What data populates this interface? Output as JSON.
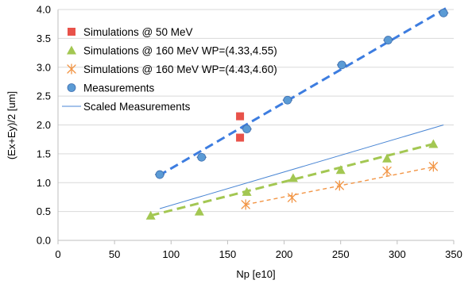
{
  "chart_data": {
    "type": "scatter",
    "xlabel": "Np [e10]",
    "ylabel": "(Ex+Ey)/2 [um]",
    "xlim": [
      0,
      350
    ],
    "ylim": [
      0,
      4
    ],
    "x_ticks": [
      "0",
      "50",
      "100",
      "150",
      "200",
      "250",
      "300",
      "350"
    ],
    "y_ticks": [
      "0.0",
      "0.5",
      "1.0",
      "1.5",
      "2.0",
      "2.5",
      "3.0",
      "3.5",
      "4.0"
    ],
    "grid": "horizontal",
    "legend_position": "top-left",
    "series": [
      {
        "name": "Simulations @ 50 MeV",
        "marker": "square",
        "color": "#e8524a",
        "points": [
          [
            161,
            2.15
          ],
          [
            161,
            1.78
          ]
        ]
      },
      {
        "name": "Simulations @ 160 MeV WP=(4.33,4.55)",
        "marker": "triangle",
        "color": "#a3c752",
        "points": [
          [
            82,
            0.43
          ],
          [
            125,
            0.5
          ],
          [
            167,
            0.84
          ],
          [
            208,
            1.08
          ],
          [
            250,
            1.22
          ],
          [
            291,
            1.42
          ],
          [
            332,
            1.67
          ]
        ],
        "trendline": {
          "from": [
            82,
            0.43
          ],
          "to": [
            332,
            1.67
          ],
          "style": "dashed",
          "color": "#a3c752"
        }
      },
      {
        "name": "Simulations @ 160 MeV WP=(4.43,4.60)",
        "marker": "asterisk",
        "color": "#f29545",
        "points": [
          [
            166,
            0.62
          ],
          [
            207,
            0.74
          ],
          [
            249,
            0.95
          ],
          [
            291,
            1.2
          ],
          [
            332,
            1.28
          ]
        ],
        "trendline": {
          "from": [
            166,
            0.62
          ],
          "to": [
            334,
            1.28
          ],
          "style": "dashed",
          "color": "#f29545"
        }
      },
      {
        "name": "Measurements",
        "marker": "circle",
        "color": "#5b9bd5",
        "points": [
          [
            90,
            1.14
          ],
          [
            127,
            1.44
          ],
          [
            167,
            1.93
          ],
          [
            203,
            2.43
          ],
          [
            251,
            3.04
          ],
          [
            292,
            3.47
          ],
          [
            341,
            3.94
          ]
        ],
        "trendline": {
          "from": [
            89,
            1.12
          ],
          "to": [
            343,
            4.02
          ],
          "style": "dashed",
          "color": "#3d7de0"
        }
      },
      {
        "name": "Scaled Measurements",
        "marker": "line",
        "color": "#4a86d4",
        "line": {
          "from": [
            90,
            0.55
          ],
          "to": [
            341,
            2.0
          ]
        }
      }
    ]
  }
}
